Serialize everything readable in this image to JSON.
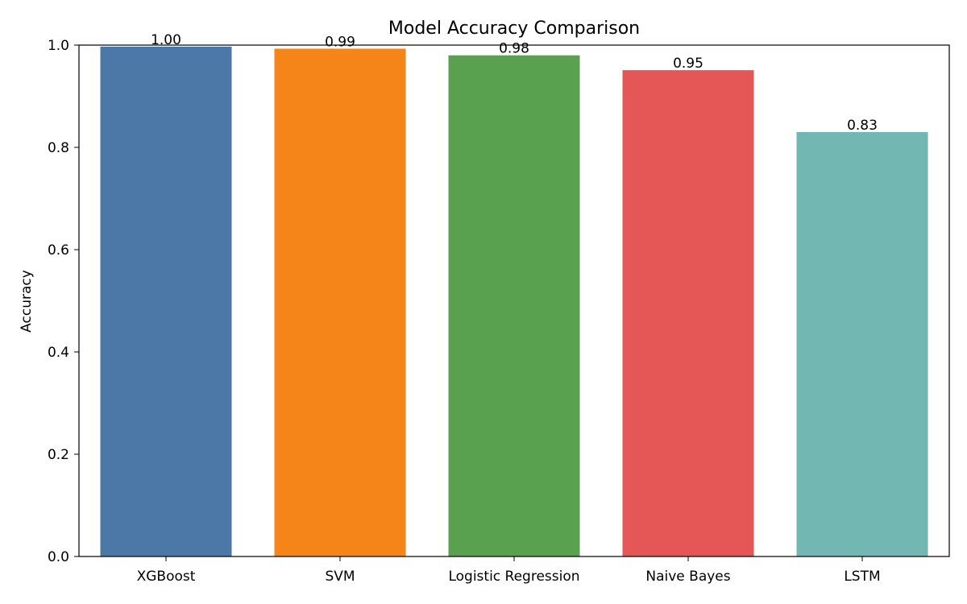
{
  "chart_data": {
    "type": "bar",
    "title": "Model Accuracy Comparison",
    "xlabel": "",
    "ylabel": "Accuracy",
    "ylim": [
      0,
      1.0
    ],
    "yticks": [
      "0.0",
      "0.2",
      "0.4",
      "0.6",
      "0.8",
      "1.0"
    ],
    "categories": [
      "XGBoost",
      "SVM",
      "Logistic Regression",
      "Naive Bayes",
      "LSTM"
    ],
    "values": [
      0.997,
      0.993,
      0.98,
      0.951,
      0.83
    ],
    "value_labels": [
      "1.00",
      "0.99",
      "0.98",
      "0.95",
      "0.83"
    ],
    "colors": [
      "#4c78a8",
      "#f58518",
      "#59a14f",
      "#e45756",
      "#72b7b2"
    ],
    "grid": false,
    "legend": "none"
  }
}
